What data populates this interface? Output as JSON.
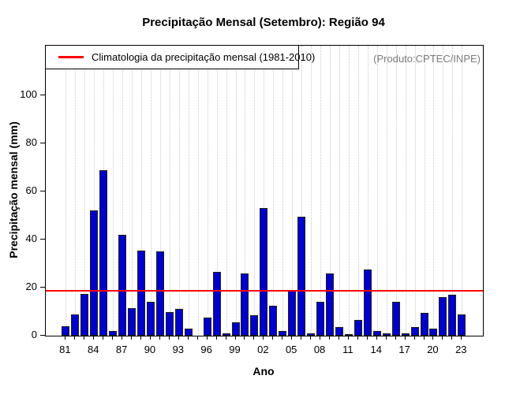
{
  "title": "Precipitação Mensal (Setembro): Região 94",
  "watermark": "(Produto:CPTEC/INPE)",
  "legend": {
    "label": "Climatologia da precipitação mensal (1981-2010)"
  },
  "axes": {
    "xlabel": "Ano",
    "ylabel": "Precipitação mensal (mm)"
  },
  "colors": {
    "bar_fill": "#0000cc",
    "bar_border": "#1f1f1f",
    "climatology_line": "#ff0000",
    "grid": "#c9c9c9",
    "watermark_text": "#7d7d7d",
    "axis": "#000000"
  },
  "chart_data": {
    "type": "bar",
    "title": "Precipitação Mensal (Setembro): Região 94",
    "xlabel": "Ano",
    "ylabel": "Precipitação mensal (mm)",
    "categories": [
      "81",
      "82",
      "83",
      "84",
      "85",
      "86",
      "87",
      "88",
      "89",
      "90",
      "91",
      "92",
      "93",
      "94",
      "95",
      "96",
      "97",
      "98",
      "99",
      "00",
      "01",
      "02",
      "03",
      "04",
      "05",
      "06",
      "07",
      "08",
      "09",
      "10",
      "11",
      "12",
      "13",
      "14",
      "15",
      "16",
      "17",
      "18",
      "19",
      "20",
      "21",
      "22",
      "23"
    ],
    "values": [
      4,
      9,
      17.5,
      52,
      69,
      2,
      42,
      11.5,
      35.5,
      14,
      35,
      10,
      11,
      3,
      0,
      7.5,
      26.5,
      1,
      5.5,
      26,
      8.5,
      53,
      12.5,
      2,
      19,
      49.5,
      1,
      14,
      26,
      3.5,
      0.5,
      6.5,
      27.5,
      2,
      1,
      14,
      1,
      3.5,
      9.5,
      3,
      16,
      17,
      9
    ],
    "x_label_every": 3,
    "yticks": [
      0,
      20,
      40,
      60,
      80,
      100
    ],
    "ylim": [
      0,
      120.7
    ],
    "grid": "vertical-dotted",
    "legend": [
      "Climatologia da precipitação mensal (1981-2010)"
    ],
    "legend_position": "top-left",
    "climatology_value": 19
  }
}
